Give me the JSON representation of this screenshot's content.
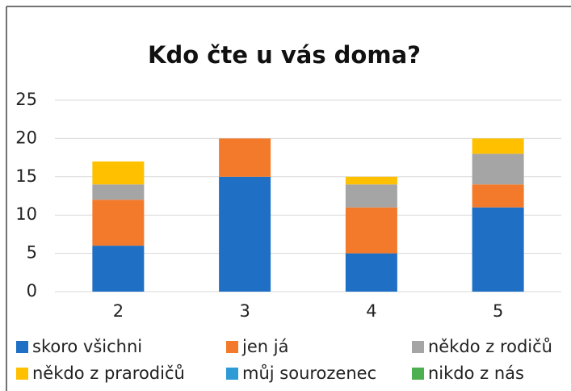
{
  "chart_data": {
    "type": "bar",
    "stacked": true,
    "title": "Kdo čte u vás doma?",
    "categories": [
      "2",
      "3",
      "4",
      "5"
    ],
    "series": [
      {
        "name": "skoro všichni",
        "color": "#1f6fc5",
        "values": [
          6,
          15,
          5,
          11
        ]
      },
      {
        "name": "jen já",
        "color": "#f37a2a",
        "values": [
          6,
          5,
          6,
          3
        ]
      },
      {
        "name": "někdo z rodičů",
        "color": "#a5a5a5",
        "values": [
          2,
          0,
          3,
          4
        ]
      },
      {
        "name": "někdo z prarodičů",
        "color": "#ffc000",
        "values": [
          3,
          0,
          1,
          2
        ]
      },
      {
        "name": "můj sourozenec",
        "color": "#2e9bd6",
        "values": [
          0,
          0,
          0,
          0
        ]
      },
      {
        "name": "nikdo z nás",
        "color": "#4caf50",
        "values": [
          0,
          0,
          0,
          0
        ]
      }
    ],
    "ylim": [
      0,
      25
    ],
    "yticks": [
      0,
      5,
      10,
      15,
      20,
      25
    ],
    "grid": true,
    "legend": "bottom"
  }
}
